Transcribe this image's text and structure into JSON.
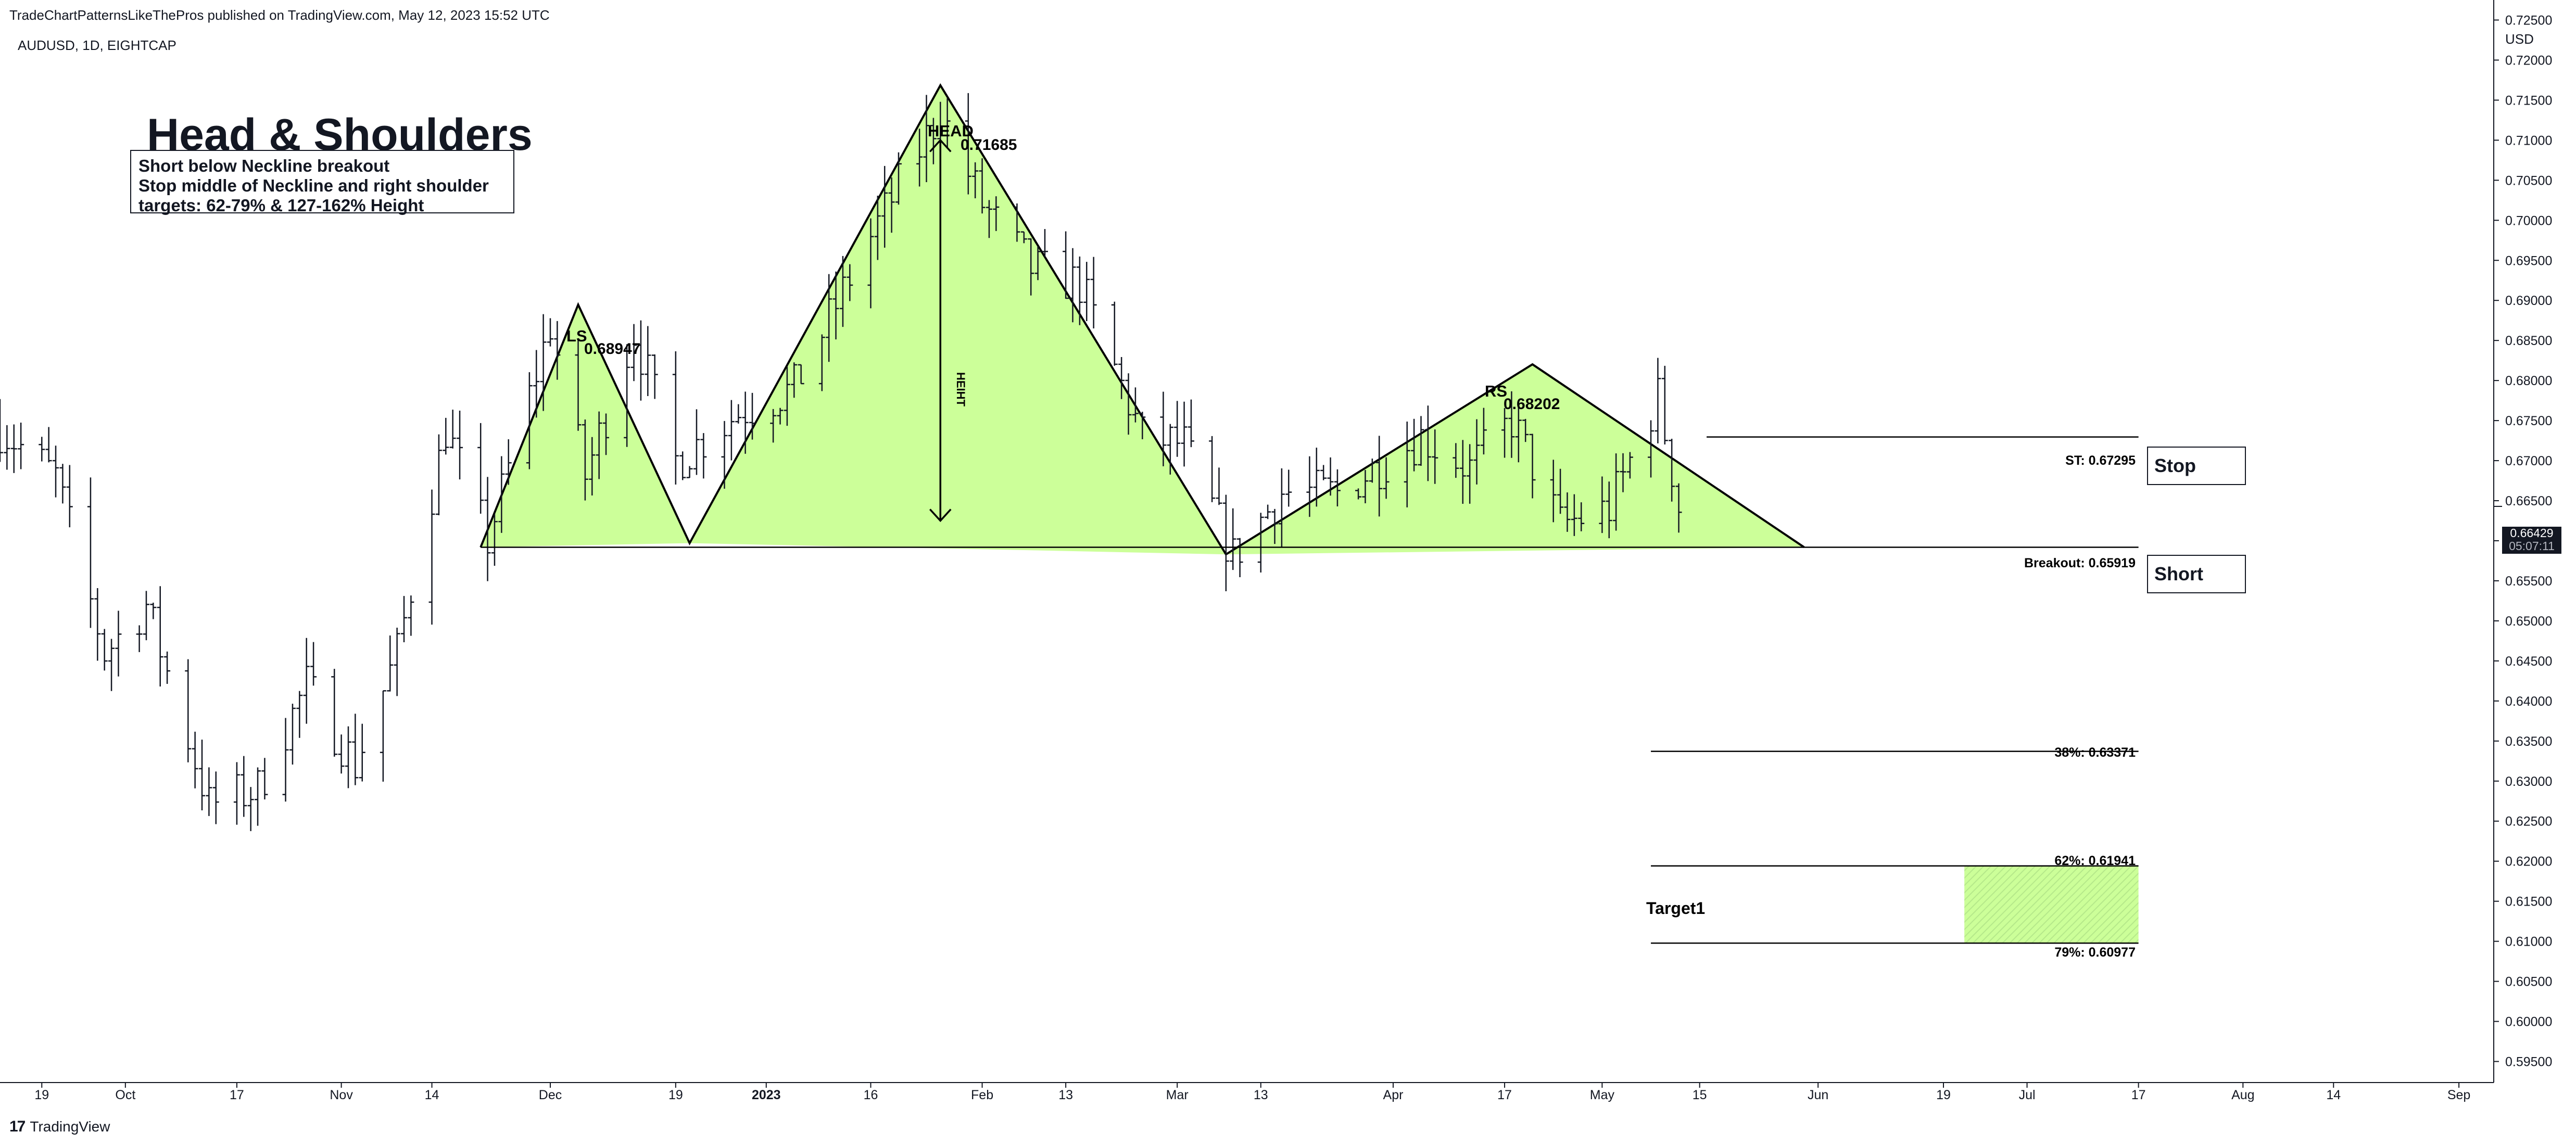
{
  "header": {
    "publisher_line": "TradeChartPatternsLikeThePros published on TradingView.com, May 12, 2023 15:52 UTC",
    "symbol_line": "AUDUSD, 1D, EIGHTCAP",
    "currency": "USD"
  },
  "footer": {
    "logo_mark": "17",
    "logo_text": "TradingView"
  },
  "colors": {
    "pattern_fill": "#ccff99",
    "target_fill": "#b5e88a",
    "line": "#000000",
    "axis_text": "#131722"
  },
  "annotations": {
    "title": "Head & Shoulders",
    "note_lines": [
      "Short below Neckline breakout",
      "Stop middle of Neckline and right shoulder",
      "targets: 62-79% & 127-162% Height"
    ],
    "ls_label": "LS",
    "ls_price": "0.68947",
    "head_label": "HEAD",
    "head_price": "0.71685",
    "rs_label": "RS",
    "rs_price": "0.68202",
    "height_label": "HEIHT",
    "stop_label": "ST: 0.67295",
    "stop_box": "Stop",
    "breakout_label": "Breakout: 0.65919",
    "short_box": "Short",
    "fib38_label": "38%: 0.63371",
    "fib62_label": "62%: 0.61941",
    "fib79_label": "79%: 0.60977",
    "target_label": "Target1"
  },
  "price_tag": {
    "price": "0.66429",
    "countdown": "05:07:11"
  },
  "chart_data": {
    "type": "ohlc_bar",
    "symbol": "AUDUSD",
    "interval": "1D",
    "exchange": "EIGHTCAP",
    "ylim": [
      0.5925,
      0.7275
    ],
    "y_ticks": [
      "0.72500",
      "0.72000",
      "0.71500",
      "0.71000",
      "0.70500",
      "0.70000",
      "0.69500",
      "0.69000",
      "0.68500",
      "0.68000",
      "0.67500",
      "0.67000",
      "0.66500",
      "0.66000",
      "0.65500",
      "0.65000",
      "0.64500",
      "0.64000",
      "0.63500",
      "0.63000",
      "0.62500",
      "0.62000",
      "0.61500",
      "0.61000",
      "0.60500",
      "0.60000",
      "0.59500"
    ],
    "x_range": [
      "2022-09-13",
      "2023-09-06"
    ],
    "x_ticks": [
      {
        "date": "2022-09-19",
        "label": "19"
      },
      {
        "date": "2022-10-01",
        "label": "Oct"
      },
      {
        "date": "2022-10-17",
        "label": "17"
      },
      {
        "date": "2022-11-01",
        "label": "Nov"
      },
      {
        "date": "2022-11-14",
        "label": "14"
      },
      {
        "date": "2022-12-01",
        "label": "Dec"
      },
      {
        "date": "2022-12-19",
        "label": "19"
      },
      {
        "date": "2023-01-01",
        "label": "2023",
        "bold": true
      },
      {
        "date": "2023-01-16",
        "label": "16"
      },
      {
        "date": "2023-02-01",
        "label": "Feb"
      },
      {
        "date": "2023-02-13",
        "label": "13"
      },
      {
        "date": "2023-03-01",
        "label": "Mar"
      },
      {
        "date": "2023-03-13",
        "label": "13"
      },
      {
        "date": "2023-04-01",
        "label": "Apr"
      },
      {
        "date": "2023-04-17",
        "label": "17"
      },
      {
        "date": "2023-05-01",
        "label": "May"
      },
      {
        "date": "2023-05-15",
        "label": "15"
      },
      {
        "date": "2023-06-01",
        "label": "Jun"
      },
      {
        "date": "2023-06-19",
        "label": "19"
      },
      {
        "date": "2023-07-01",
        "label": "Jul"
      },
      {
        "date": "2023-07-17",
        "label": "17"
      },
      {
        "date": "2023-08-01",
        "label": "Aug"
      },
      {
        "date": "2023-08-14",
        "label": "14"
      },
      {
        "date": "2023-09-01",
        "label": "Sep"
      }
    ],
    "price_path": [
      [
        "2022-09-13",
        0.674
      ],
      [
        "2022-09-21",
        0.668
      ],
      [
        "2022-09-28",
        0.646
      ],
      [
        "2022-10-04",
        0.652
      ],
      [
        "2022-10-13",
        0.627
      ],
      [
        "2022-10-20",
        0.629
      ],
      [
        "2022-10-27",
        0.642
      ],
      [
        "2022-11-03",
        0.632
      ],
      [
        "2022-11-09",
        0.646
      ],
      [
        "2022-11-16",
        0.674
      ],
      [
        "2022-11-22",
        0.66
      ],
      [
        "2022-12-01",
        0.687
      ],
      [
        "2022-12-06",
        0.668
      ],
      [
        "2022-12-13",
        0.686
      ],
      [
        "2022-12-19",
        0.67
      ],
      [
        "2022-12-28",
        0.676
      ],
      [
        "2023-01-05",
        0.679
      ],
      [
        "2023-01-16",
        0.698
      ],
      [
        "2023-01-26",
        0.7135
      ],
      [
        "2023-02-01",
        0.702
      ],
      [
        "2023-02-08",
        0.694
      ],
      [
        "2023-02-15",
        0.692
      ],
      [
        "2023-02-24",
        0.673
      ],
      [
        "2023-03-02",
        0.672
      ],
      [
        "2023-03-09",
        0.658
      ],
      [
        "2023-03-16",
        0.666
      ],
      [
        "2023-03-24",
        0.666
      ],
      [
        "2023-04-05",
        0.673
      ],
      [
        "2023-04-12",
        0.669
      ],
      [
        "2023-04-18",
        0.675
      ],
      [
        "2023-04-25",
        0.662
      ],
      [
        "2023-05-02",
        0.664
      ],
      [
        "2023-05-09",
        0.678
      ],
      [
        "2023-05-12",
        0.6643
      ]
    ],
    "pattern": {
      "type": "head_and_shoulders",
      "points": [
        {
          "date": "2022-11-21",
          "price": 0.65919
        },
        {
          "date": "2022-12-05",
          "price": 0.68947
        },
        {
          "date": "2022-12-21",
          "price": 0.6597
        },
        {
          "date": "2023-01-26",
          "price": 0.71685
        },
        {
          "date": "2023-03-08",
          "price": 0.6583
        },
        {
          "date": "2023-04-21",
          "price": 0.68202
        },
        {
          "date": "2023-05-30",
          "price": 0.65919
        }
      ],
      "neckline": 0.65919,
      "height_arrow": {
        "date": "2023-01-26",
        "from": 0.71,
        "to": 0.6625
      }
    },
    "levels": [
      {
        "name": "stop",
        "price": 0.67295,
        "from": "2023-05-16",
        "to": "2023-07-17"
      },
      {
        "name": "breakout",
        "price": 0.65919,
        "from": "2022-11-21",
        "to": "2023-07-17"
      },
      {
        "name": "fib38",
        "price": 0.63371,
        "from": "2023-05-08",
        "to": "2023-07-17"
      },
      {
        "name": "fib62",
        "price": 0.61941,
        "from": "2023-05-08",
        "to": "2023-07-17"
      },
      {
        "name": "fib79",
        "price": 0.60977,
        "from": "2023-05-08",
        "to": "2023-07-17"
      }
    ],
    "target_zone": {
      "from_date": "2023-06-22",
      "to_date": "2023-07-17",
      "from_price": 0.60977,
      "to_price": 0.61941
    },
    "last_price": 0.66429
  }
}
